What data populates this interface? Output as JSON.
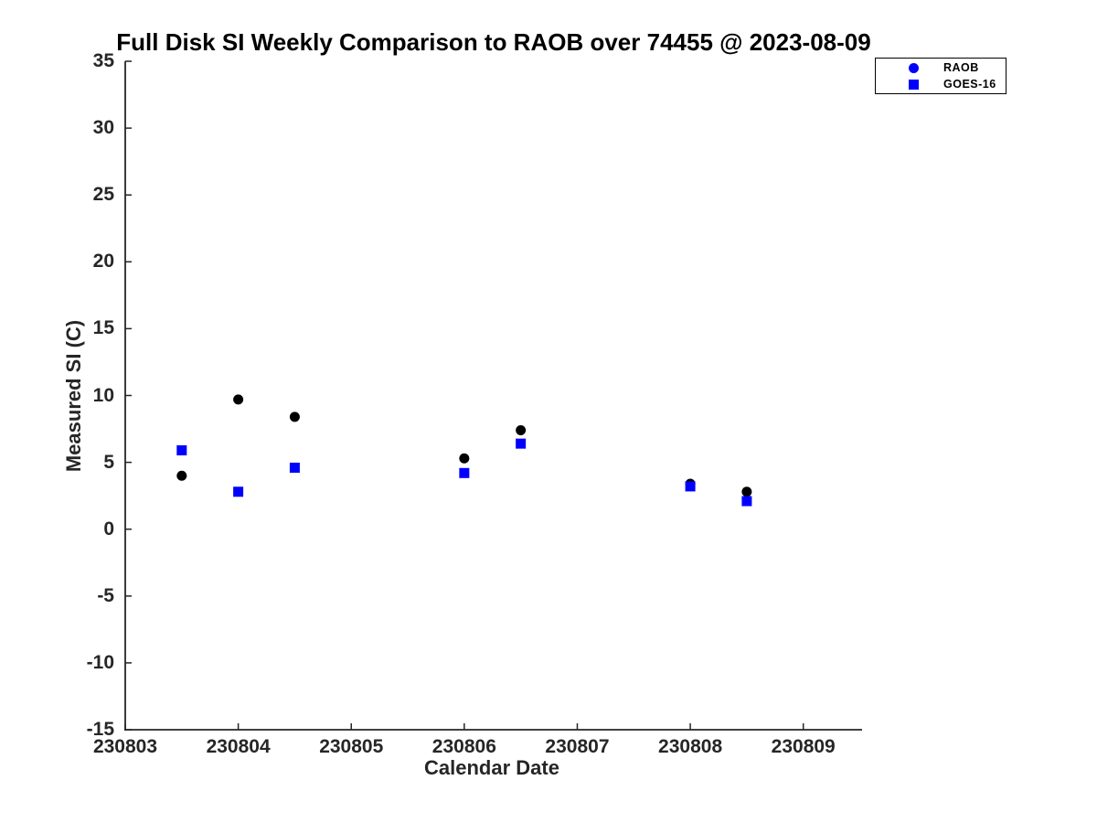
{
  "chart_data": {
    "type": "scatter",
    "title": "Full Disk SI Weekly Comparison to RAOB over 74455 @ 2023-08-09",
    "xlabel": "Calendar Date",
    "ylabel": "Measured SI (C)",
    "xlim": [
      230803,
      230809.52
    ],
    "ylim": [
      -15,
      35
    ],
    "grid": false,
    "axis_color": "#262626",
    "legend_position": "outside-top-right",
    "x_ticks": [
      {
        "value": 230803,
        "label": "230803"
      },
      {
        "value": 230804,
        "label": "230804"
      },
      {
        "value": 230805,
        "label": "230805"
      },
      {
        "value": 230806,
        "label": "230806"
      },
      {
        "value": 230807,
        "label": "230807"
      },
      {
        "value": 230808,
        "label": "230808"
      },
      {
        "value": 230809,
        "label": "230809"
      }
    ],
    "y_ticks": [
      {
        "value": -15,
        "label": "-15"
      },
      {
        "value": -10,
        "label": "-10"
      },
      {
        "value": -5,
        "label": "-5"
      },
      {
        "value": 0,
        "label": "0"
      },
      {
        "value": 5,
        "label": "5"
      },
      {
        "value": 10,
        "label": "10"
      },
      {
        "value": 15,
        "label": "15"
      },
      {
        "value": 20,
        "label": "20"
      },
      {
        "value": 25,
        "label": "25"
      },
      {
        "value": 30,
        "label": "30"
      },
      {
        "value": 35,
        "label": "35"
      }
    ],
    "series": [
      {
        "name": "RAOB",
        "marker": "circle",
        "color": "#000000",
        "legend_color": "#0000ff",
        "x": [
          230803.5,
          230804.0,
          230804.5,
          230806.0,
          230806.5,
          230808.0,
          230808.5
        ],
        "y": [
          4.0,
          9.7,
          8.4,
          5.3,
          7.4,
          3.4,
          2.8
        ]
      },
      {
        "name": "GOES-16",
        "marker": "square",
        "color": "#0000ff",
        "legend_color": "#0000ff",
        "x": [
          230803.5,
          230804.0,
          230804.5,
          230806.0,
          230806.5,
          230808.0,
          230808.5
        ],
        "y": [
          5.9,
          2.8,
          4.6,
          4.2,
          6.4,
          3.2,
          2.1
        ]
      }
    ],
    "legend": [
      {
        "label": "RAOB"
      },
      {
        "label": "GOES-16"
      }
    ]
  }
}
